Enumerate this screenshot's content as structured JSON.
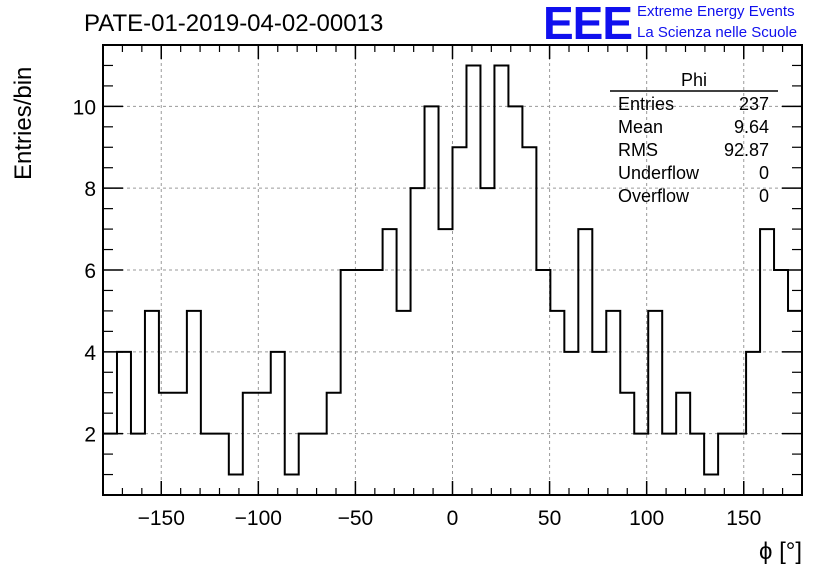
{
  "title": "PATE-01-2019-04-02-00013",
  "logo": {
    "mark": "EEE",
    "line1": "Extreme Energy Events",
    "line2": "La Scienza nelle Scuole",
    "color": "#1010ee"
  },
  "chart_data": {
    "type": "histogram",
    "title": "PATE-01-2019-04-02-00013",
    "xlabel": "ϕ [°]",
    "ylabel": "Entries/bin",
    "xlim": [
      -180,
      180
    ],
    "ylim": [
      0.5,
      11.5
    ],
    "grid": true,
    "bin_width": 7.2,
    "bin_edges_start": -180,
    "values": [
      2,
      4,
      2,
      5,
      3,
      3,
      5,
      2,
      2,
      1,
      3,
      3,
      4,
      1,
      2,
      2,
      3,
      6,
      6,
      6,
      7,
      5,
      8,
      10,
      7,
      9,
      11,
      8,
      11,
      10,
      9,
      6,
      5,
      4,
      7,
      4,
      5,
      3,
      2,
      5,
      2,
      3,
      2,
      1,
      2,
      2,
      4,
      7,
      6,
      5
    ],
    "x_ticks": [
      "−150",
      "−100",
      "−50",
      "0",
      "50",
      "100",
      "150"
    ],
    "y_ticks": [
      "2",
      "4",
      "6",
      "8",
      "10"
    ],
    "stats_box": {
      "name": "Phi",
      "rows": [
        {
          "label": "Entries",
          "value": "237"
        },
        {
          "label": "Mean",
          "value": "9.64"
        },
        {
          "label": "RMS",
          "value": "92.87"
        },
        {
          "label": "Underflow",
          "value": "0"
        },
        {
          "label": "Overflow",
          "value": "0"
        }
      ]
    }
  }
}
